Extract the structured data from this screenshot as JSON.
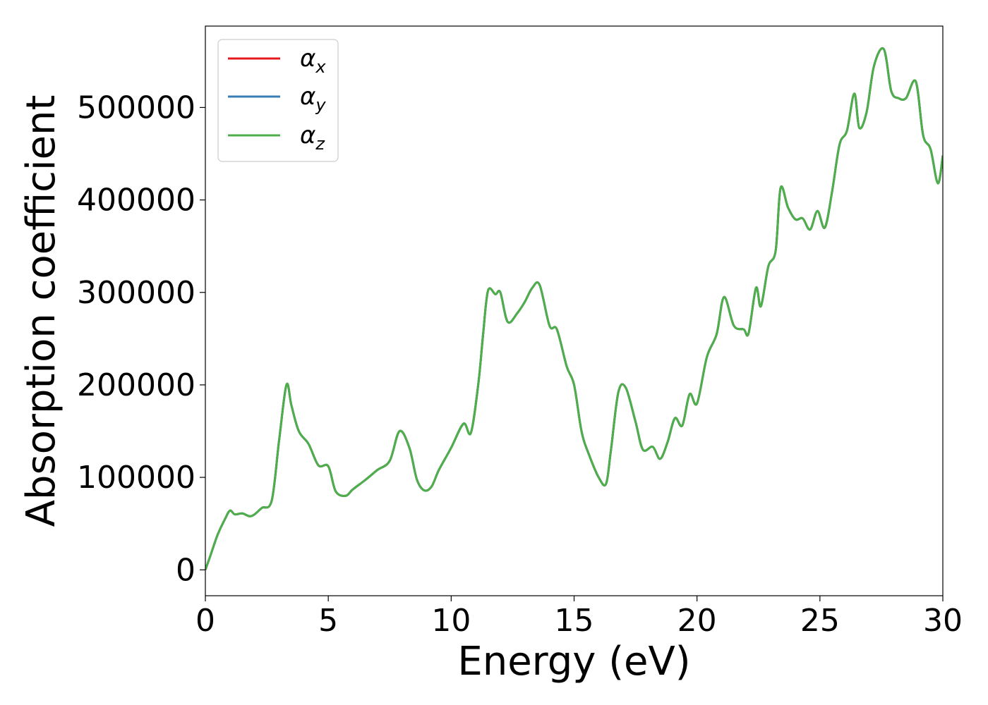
{
  "chart_data": {
    "type": "line",
    "xlabel": "Energy (eV)",
    "ylabel": "Absorption coefficient",
    "xlim": [
      0,
      30
    ],
    "ylim": [
      -28000,
      588000
    ],
    "xticks": [
      0,
      5,
      10,
      15,
      20,
      25,
      30
    ],
    "yticks": [
      0,
      100000,
      200000,
      300000,
      400000,
      500000
    ],
    "xtick_labels": [
      "0",
      "5",
      "10",
      "15",
      "20",
      "25",
      "30"
    ],
    "ytick_labels": [
      "0",
      "100000",
      "200000",
      "300000",
      "400000",
      "500000"
    ],
    "grid": false,
    "legend_position": "top-left",
    "series": [
      {
        "name": "α",
        "subscript": "x",
        "color": "#e41a1c"
      },
      {
        "name": "α",
        "subscript": "y",
        "color": "#377eb8"
      },
      {
        "name": "α",
        "subscript": "z",
        "color": "#4daf4a"
      }
    ],
    "x": [
      0,
      0.2,
      0.5,
      0.8,
      1.0,
      1.2,
      1.5,
      1.8,
      2.0,
      2.3,
      2.7,
      3.0,
      3.3,
      3.5,
      3.8,
      4.2,
      4.6,
      5.0,
      5.3,
      5.7,
      6.0,
      6.5,
      7.0,
      7.5,
      7.9,
      8.3,
      8.6,
      8.9,
      9.2,
      9.5,
      10.0,
      10.5,
      10.8,
      11.1,
      11.3,
      11.5,
      11.8,
      12.0,
      12.3,
      12.7,
      13.0,
      13.3,
      13.6,
      14.0,
      14.3,
      14.7,
      15.0,
      15.3,
      15.6,
      16.0,
      16.3,
      16.5,
      16.8,
      17.1,
      17.5,
      17.8,
      18.2,
      18.5,
      18.8,
      19.1,
      19.4,
      19.7,
      20.0,
      20.4,
      20.8,
      21.1,
      21.5,
      21.9,
      22.1,
      22.4,
      22.6,
      22.9,
      23.2,
      23.4,
      23.7,
      24.0,
      24.3,
      24.6,
      24.9,
      25.2,
      25.5,
      25.8,
      26.1,
      26.4,
      26.6,
      26.9,
      27.2,
      27.6,
      27.9,
      28.2,
      28.5,
      28.9,
      29.2,
      29.5,
      29.8,
      30.0
    ],
    "values": [
      0,
      15000,
      38000,
      55000,
      64000,
      60000,
      61000,
      58000,
      60000,
      67000,
      75000,
      140000,
      200000,
      178000,
      150000,
      136000,
      113000,
      112000,
      85000,
      80000,
      87000,
      97000,
      108000,
      118000,
      150000,
      132000,
      98000,
      86000,
      90000,
      108000,
      132000,
      158000,
      148000,
      200000,
      255000,
      302000,
      298000,
      300000,
      268000,
      278000,
      290000,
      305000,
      308000,
      264000,
      260000,
      220000,
      200000,
      150000,
      125000,
      100000,
      93000,
      130000,
      192000,
      197000,
      160000,
      130000,
      133000,
      120000,
      138000,
      164000,
      156000,
      190000,
      180000,
      230000,
      255000,
      295000,
      264000,
      260000,
      256000,
      305000,
      285000,
      328000,
      345000,
      413000,
      392000,
      379000,
      380000,
      368000,
      388000,
      370000,
      410000,
      460000,
      475000,
      515000,
      478000,
      495000,
      545000,
      563000,
      518000,
      510000,
      510000,
      528000,
      470000,
      455000,
      418000,
      448000
    ]
  }
}
